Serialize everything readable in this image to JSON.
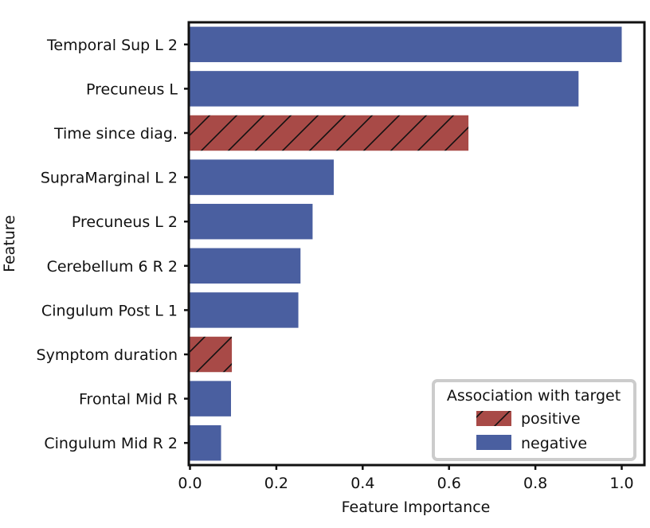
{
  "chart_data": {
    "type": "bar",
    "orientation": "horizontal",
    "title": "",
    "xlabel": "Feature Importance",
    "ylabel": "Feature",
    "xlim": [
      0.0,
      1.0
    ],
    "xticks": [
      "0.0",
      "0.2",
      "0.4",
      "0.6",
      "0.8",
      "1.0"
    ],
    "categories": [
      "Temporal Sup L 2",
      "Precuneus L",
      "Time since diag.",
      "SupraMarginal L 2",
      "Precuneus L 2",
      "Cerebellum 6 R 2",
      "Cingulum Post L 1",
      "Symptom duration",
      "Frontal Mid R",
      "Cingulum Mid R 2"
    ],
    "values": [
      1.0,
      0.9,
      0.645,
      0.333,
      0.284,
      0.256,
      0.251,
      0.097,
      0.095,
      0.072
    ],
    "association": [
      "negative",
      "negative",
      "positive",
      "negative",
      "negative",
      "negative",
      "negative",
      "positive",
      "negative",
      "negative"
    ],
    "grid": false,
    "legend": {
      "title": "Association with target",
      "placement": "lower-right",
      "entries": [
        {
          "key": "positive",
          "label": "positive",
          "color": "#a84a47",
          "hatch": "/"
        },
        {
          "key": "negative",
          "label": "negative",
          "color": "#4a5fa0",
          "hatch": ""
        }
      ]
    },
    "colors": {
      "positive": "#a84a47",
      "negative": "#4a5fa0",
      "frame": "#111111"
    }
  }
}
